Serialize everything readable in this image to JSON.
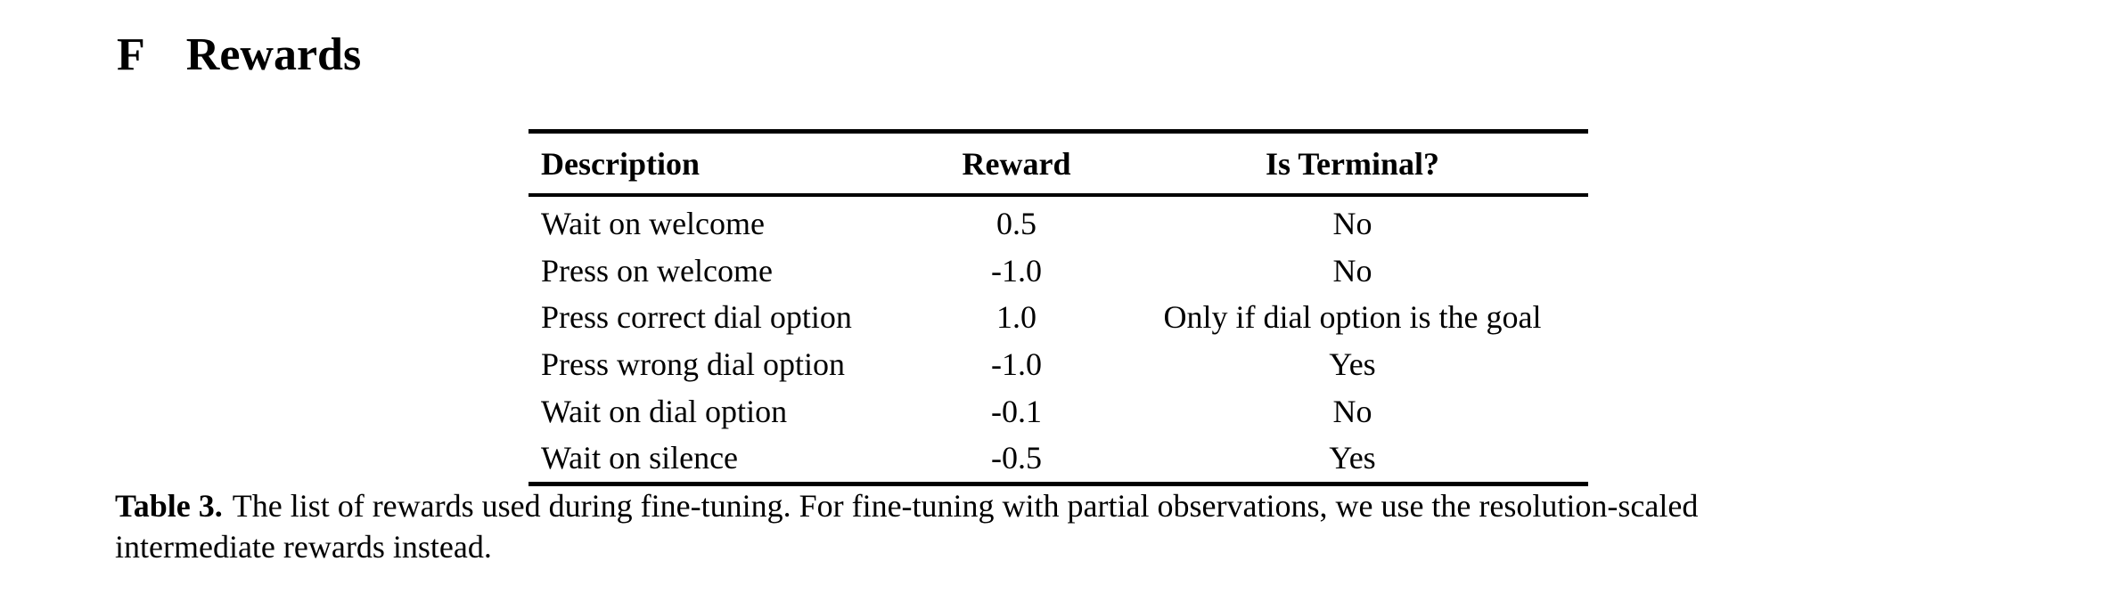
{
  "page": {
    "background_color": "#ffffff",
    "text_color": "#000000"
  },
  "section": {
    "number": "F",
    "title": "Rewards"
  },
  "table": {
    "columns": [
      "Description",
      "Reward",
      "Is Terminal?"
    ],
    "rows": [
      {
        "description": "Wait on welcome",
        "reward": "0.5",
        "terminal": "No"
      },
      {
        "description": "Press on welcome",
        "reward": "-1.0",
        "terminal": "No"
      },
      {
        "description": "Press correct dial option",
        "reward": "1.0",
        "terminal": "Only if dial option is the goal"
      },
      {
        "description": "Press wrong dial option",
        "reward": "-1.0",
        "terminal": "Yes"
      },
      {
        "description": "Wait on dial option",
        "reward": "-0.1",
        "terminal": "No"
      },
      {
        "description": "Wait on silence",
        "reward": "-0.5",
        "terminal": "Yes"
      }
    ]
  },
  "caption": {
    "label": "Table 3.",
    "line1": "The list of rewards used during fine-tuning. For fine-tuning with partial observations, we use the resolution-scaled",
    "line2": "intermediate rewards instead."
  }
}
